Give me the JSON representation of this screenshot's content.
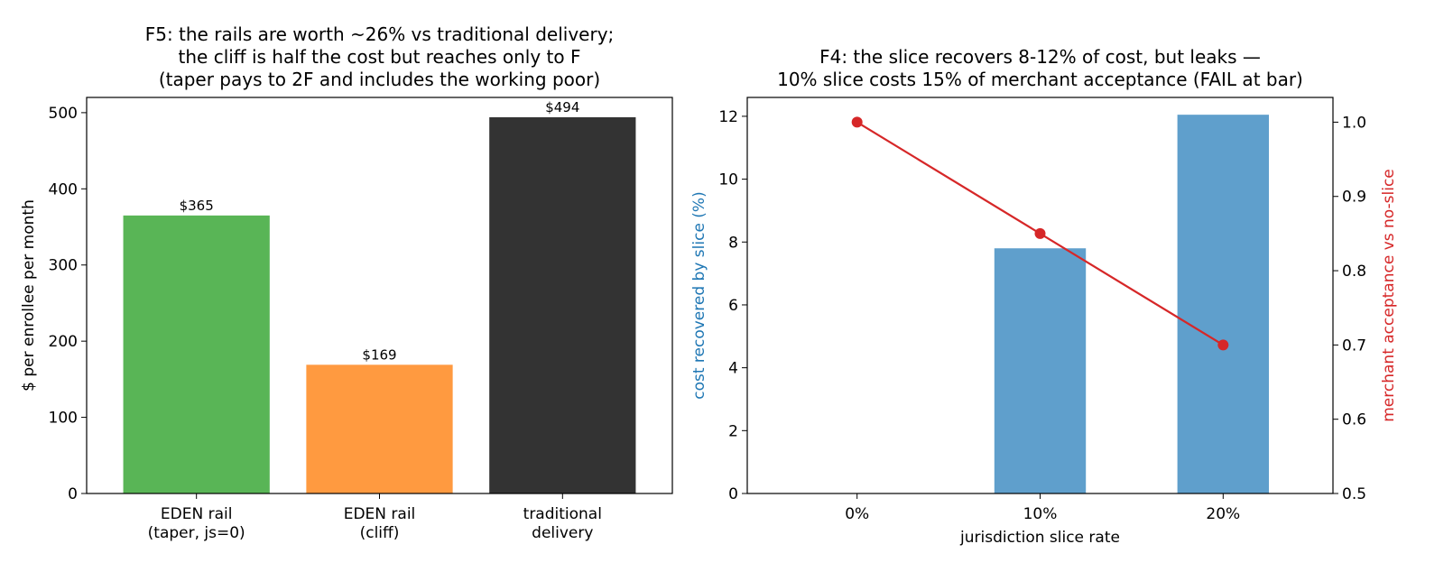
{
  "chart_data": [
    {
      "type": "bar",
      "title": "F5: the rails are worth ~26% vs traditional delivery;\nthe cliff is half the cost but reaches only to F\n(taper pays to 2F and includes the working poor)",
      "xlabel": "",
      "ylabel": "$ per enrollee per month",
      "categories": [
        "EDEN rail\n(taper, js=0)",
        "EDEN rail\n(cliff)",
        "traditional\ndelivery"
      ],
      "values": [
        365,
        169,
        494
      ],
      "value_labels": [
        "$365",
        "$169",
        "$494"
      ],
      "colors": [
        "#59b556",
        "#ff9a40",
        "#333333"
      ],
      "ylim": [
        0,
        520
      ],
      "yticks": [
        0,
        100,
        200,
        300,
        400,
        500
      ],
      "grid": false
    },
    {
      "type": "bar+line",
      "title": "F4: the slice recovers 8-12% of cost, but leaks —\n10% slice costs 15% of merchant acceptance (FAIL at bar)",
      "xlabel": "jurisdiction slice rate",
      "ylabel_left": "cost recovered by slice (%)",
      "ylabel_right": "merchant acceptance vs no-slice",
      "categories": [
        "0%",
        "10%",
        "20%"
      ],
      "bar_values": [
        0,
        7.8,
        12.05
      ],
      "line_values": [
        1.0,
        0.85,
        0.7
      ],
      "bar_color": "#5f9fcc",
      "line_color": "#d62728",
      "ylabel_left_color": "#1f77b4",
      "ylabel_right_color": "#d62728",
      "ylim_left": [
        0,
        12.6
      ],
      "ylim_right": [
        0.5,
        1.0333
      ],
      "yticks_left": [
        0,
        2,
        4,
        6,
        8,
        10,
        12
      ],
      "yticks_right": [
        0.5,
        0.6,
        0.7,
        0.8,
        0.9,
        1.0
      ],
      "yticks_right_labels": [
        "0.5",
        "0.6",
        "0.7",
        "0.8",
        "0.9",
        "1.0"
      ],
      "grid": false
    }
  ]
}
